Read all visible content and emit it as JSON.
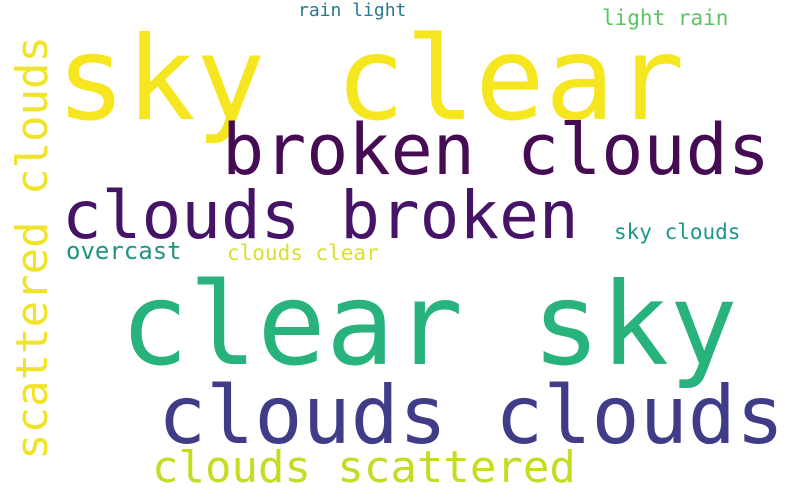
{
  "words": [
    {
      "text": "sky clear",
      "color": "#f6e61f"
    },
    {
      "text": "broken clouds",
      "color": "#450c53"
    },
    {
      "text": "clouds broken",
      "color": "#461467"
    },
    {
      "text": "clear sky",
      "color": "#27b37b"
    },
    {
      "text": "clouds clouds",
      "color": "#413c88"
    },
    {
      "text": "clouds scattered",
      "color": "#c6dc24"
    },
    {
      "text": "overcast",
      "color": "#21937f"
    },
    {
      "text": "clouds clear",
      "color": "#d8e02c"
    },
    {
      "text": "sky clouds",
      "color": "#1e978b"
    },
    {
      "text": "light rain",
      "color": "#5cc461"
    },
    {
      "text": "rain light",
      "color": "#29788e"
    },
    {
      "text": "scattered clouds",
      "color": "#f0e42a"
    }
  ]
}
